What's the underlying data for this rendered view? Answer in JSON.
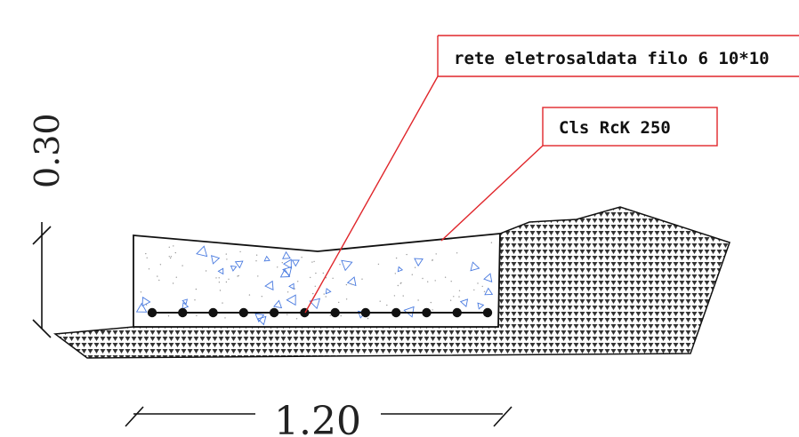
{
  "labels": {
    "rebar_mesh": "rete eletrosaldata filo 6 10*10",
    "concrete": "Cls RcK 250"
  },
  "dimensions": {
    "width": "1.20",
    "height": "0.30"
  },
  "colors": {
    "leader": "#e0262b",
    "outline": "#111111",
    "aggregate": "#4a7be0",
    "ground_hatch": "#333333"
  },
  "rebar_count": 12
}
